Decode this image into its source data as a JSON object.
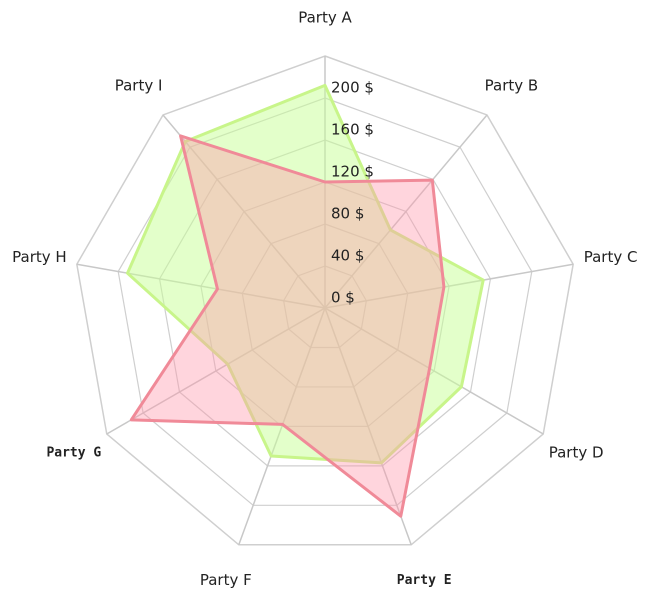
{
  "chart_data": {
    "type": "radar",
    "categories": [
      "Party A",
      "Party B",
      "Party C",
      "Party D",
      "Party E",
      "Party F",
      "Party G",
      "Party H",
      "Party I"
    ],
    "category_colors": [
      "#222222",
      "#222222",
      "#222222",
      "#222222",
      "#ee4422",
      "#222222",
      "#ee4422",
      "#222222",
      "#222222"
    ],
    "series": [
      {
        "color": "#c8f58a",
        "fill": "rgba(200,255,150,0.5)",
        "values": [
          212,
          97,
          153,
          150,
          157,
          150,
          107,
          191,
          207
        ]
      },
      {
        "color": "#f08a98",
        "fill": "rgba(255,150,170,0.4)",
        "values": [
          120,
          159,
          115,
          115,
          211,
          118,
          213,
          104,
          214
        ]
      }
    ],
    "ylim": [
      0,
      240
    ],
    "yticks": [
      {
        "value": 0,
        "label": "0 $"
      },
      {
        "value": 40,
        "label": "40 $"
      },
      {
        "value": 80,
        "label": "80 $"
      },
      {
        "value": 120,
        "label": "120 $"
      },
      {
        "value": 160,
        "label": "160 $"
      },
      {
        "value": 200,
        "label": "200 $"
      }
    ],
    "grid": true
  }
}
